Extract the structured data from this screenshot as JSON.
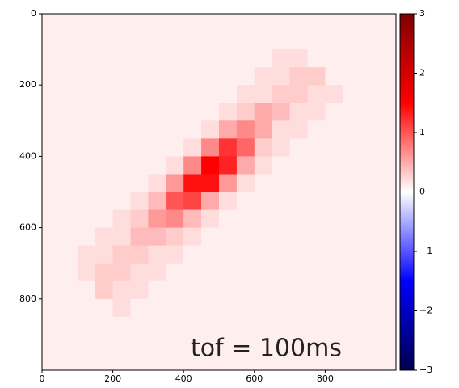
{
  "chart_data": {
    "type": "heatmap",
    "annotation": "tof = 100ms",
    "colormap": "seismic",
    "xlim": [
      0,
      1000
    ],
    "ylim": [
      1000,
      0
    ],
    "xticks": [
      0,
      200,
      400,
      600,
      800
    ],
    "yticks": [
      0,
      200,
      400,
      600,
      800
    ],
    "clim": [
      -3,
      3
    ],
    "cticks": [
      {
        "value": -3,
        "label": "−3"
      },
      {
        "value": -2,
        "label": "−2"
      },
      {
        "value": -1,
        "label": "−1"
      },
      0,
      1,
      2,
      3
    ],
    "z": [
      [
        0.1,
        0.1,
        0.1,
        0.1,
        0.1,
        0.1,
        0.1,
        0.1,
        0.1,
        0.1,
        0.1,
        0.1,
        0.1,
        0.1,
        0.1,
        0.1,
        0.1,
        0.1,
        0.1,
        0.1
      ],
      [
        0.1,
        0.1,
        0.1,
        0.1,
        0.1,
        0.1,
        0.1,
        0.1,
        0.1,
        0.1,
        0.1,
        0.1,
        0.1,
        0.1,
        0.1,
        0.1,
        0.1,
        0.1,
        0.1,
        0.1
      ],
      [
        0.1,
        0.1,
        0.1,
        0.1,
        0.1,
        0.1,
        0.1,
        0.1,
        0.1,
        0.1,
        0.1,
        0.1,
        0.1,
        0.2,
        0.2,
        0.1,
        0.1,
        0.1,
        0.1,
        0.1
      ],
      [
        0.1,
        0.1,
        0.1,
        0.1,
        0.1,
        0.1,
        0.1,
        0.1,
        0.1,
        0.1,
        0.1,
        0.1,
        0.2,
        0.2,
        0.3,
        0.3,
        0.1,
        0.1,
        0.1,
        0.1
      ],
      [
        0.1,
        0.1,
        0.1,
        0.1,
        0.1,
        0.1,
        0.1,
        0.1,
        0.1,
        0.1,
        0.1,
        0.2,
        0.2,
        0.3,
        0.3,
        0.2,
        0.2,
        0.1,
        0.1,
        0.1
      ],
      [
        0.1,
        0.1,
        0.1,
        0.1,
        0.1,
        0.1,
        0.1,
        0.1,
        0.1,
        0.1,
        0.2,
        0.3,
        0.5,
        0.4,
        0.2,
        0.2,
        0.1,
        0.1,
        0.1,
        0.1
      ],
      [
        0.1,
        0.1,
        0.1,
        0.1,
        0.1,
        0.1,
        0.1,
        0.1,
        0.1,
        0.2,
        0.5,
        0.7,
        0.5,
        0.2,
        0.2,
        0.1,
        0.1,
        0.1,
        0.1,
        0.1
      ],
      [
        0.1,
        0.1,
        0.1,
        0.1,
        0.1,
        0.1,
        0.1,
        0.1,
        0.2,
        0.7,
        1.2,
        0.9,
        0.3,
        0.2,
        0.1,
        0.1,
        0.1,
        0.1,
        0.1,
        0.1
      ],
      [
        0.1,
        0.1,
        0.1,
        0.1,
        0.1,
        0.1,
        0.1,
        0.2,
        0.7,
        1.5,
        1.3,
        0.5,
        0.2,
        0.1,
        0.1,
        0.1,
        0.1,
        0.1,
        0.1,
        0.1
      ],
      [
        0.1,
        0.1,
        0.1,
        0.1,
        0.1,
        0.1,
        0.2,
        0.6,
        1.4,
        1.4,
        0.6,
        0.2,
        0.1,
        0.1,
        0.1,
        0.1,
        0.1,
        0.1,
        0.1,
        0.1
      ],
      [
        0.1,
        0.1,
        0.1,
        0.1,
        0.1,
        0.2,
        0.4,
        1.0,
        1.1,
        0.5,
        0.2,
        0.1,
        0.1,
        0.1,
        0.1,
        0.1,
        0.1,
        0.1,
        0.1,
        0.1
      ],
      [
        0.1,
        0.1,
        0.1,
        0.1,
        0.2,
        0.3,
        0.6,
        0.7,
        0.4,
        0.2,
        0.1,
        0.1,
        0.1,
        0.1,
        0.1,
        0.1,
        0.1,
        0.1,
        0.1,
        0.1
      ],
      [
        0.1,
        0.1,
        0.1,
        0.2,
        0.2,
        0.4,
        0.4,
        0.3,
        0.2,
        0.1,
        0.1,
        0.1,
        0.1,
        0.1,
        0.1,
        0.1,
        0.1,
        0.1,
        0.1,
        0.1
      ],
      [
        0.1,
        0.1,
        0.2,
        0.2,
        0.3,
        0.3,
        0.2,
        0.2,
        0.1,
        0.1,
        0.1,
        0.1,
        0.1,
        0.1,
        0.1,
        0.1,
        0.1,
        0.1,
        0.1,
        0.1
      ],
      [
        0.1,
        0.1,
        0.2,
        0.3,
        0.3,
        0.2,
        0.2,
        0.1,
        0.1,
        0.1,
        0.1,
        0.1,
        0.1,
        0.1,
        0.1,
        0.1,
        0.1,
        0.1,
        0.1,
        0.1
      ],
      [
        0.1,
        0.1,
        0.1,
        0.3,
        0.2,
        0.2,
        0.1,
        0.1,
        0.1,
        0.1,
        0.1,
        0.1,
        0.1,
        0.1,
        0.1,
        0.1,
        0.1,
        0.1,
        0.1,
        0.1
      ],
      [
        0.1,
        0.1,
        0.1,
        0.1,
        0.2,
        0.1,
        0.1,
        0.1,
        0.1,
        0.1,
        0.1,
        0.1,
        0.1,
        0.1,
        0.1,
        0.1,
        0.1,
        0.1,
        0.1,
        0.1
      ],
      [
        0.1,
        0.1,
        0.1,
        0.1,
        0.1,
        0.1,
        0.1,
        0.1,
        0.1,
        0.1,
        0.1,
        0.1,
        0.1,
        0.1,
        0.1,
        0.1,
        0.1,
        0.1,
        0.1,
        0.1
      ],
      [
        0.1,
        0.1,
        0.1,
        0.1,
        0.1,
        0.1,
        0.1,
        0.1,
        0.1,
        0.1,
        0.1,
        0.1,
        0.1,
        0.1,
        0.1,
        0.1,
        0.1,
        0.1,
        0.1,
        0.1
      ],
      [
        0.1,
        0.1,
        0.1,
        0.1,
        0.1,
        0.1,
        0.1,
        0.1,
        0.1,
        0.1,
        0.1,
        0.1,
        0.1,
        0.1,
        0.1,
        0.1,
        0.1,
        0.1,
        0.1,
        0.1
      ]
    ]
  }
}
